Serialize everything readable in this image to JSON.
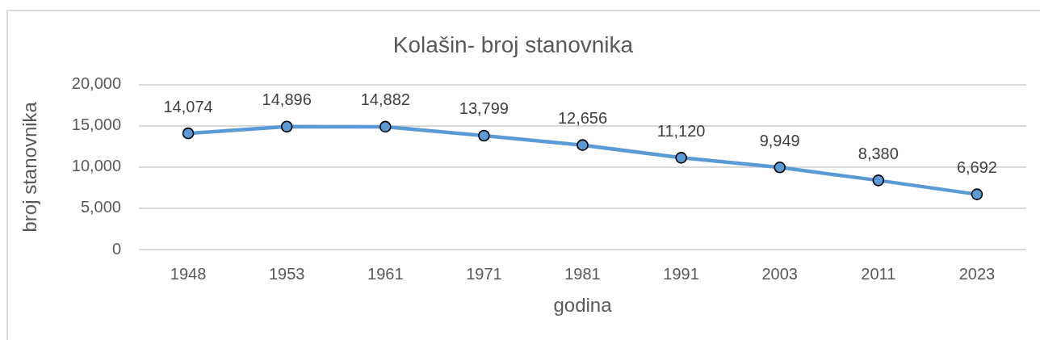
{
  "chart_data": {
    "type": "line",
    "title": "Kolašin- broj stanovnika",
    "xlabel": "godina",
    "ylabel": "broj stanovnika",
    "categories": [
      "1948",
      "1953",
      "1961",
      "1971",
      "1981",
      "1991",
      "2003",
      "2011",
      "2023"
    ],
    "series": [
      {
        "color": "#5b9bd5",
        "values": [
          14074,
          14896,
          14882,
          13799,
          12656,
          11120,
          9949,
          8380,
          6692
        ],
        "value_labels": [
          "14,074",
          "14,896",
          "14,882",
          "13,799",
          "12,656",
          "11,120",
          "9,949",
          "8,380",
          "6,692"
        ]
      }
    ],
    "ylim": [
      0,
      20000
    ],
    "yticks": [
      0,
      {
        "value": 5000,
        "label": "5,000"
      },
      {
        "value": 10000,
        "label": "10,000"
      },
      {
        "value": 15000,
        "label": "15,000"
      },
      {
        "value": 20000,
        "label": "20,000"
      }
    ],
    "grid": "y",
    "marker": "circle",
    "line_style": "solid"
  }
}
